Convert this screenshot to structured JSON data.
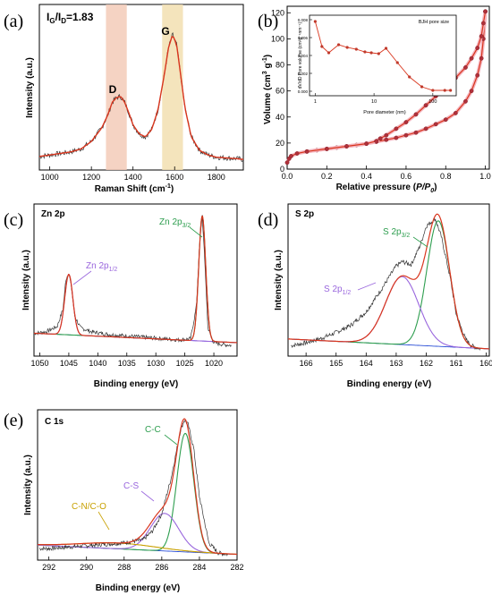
{
  "colors": {
    "raw": "#333333",
    "fit": "#d9361e",
    "bg": "#cc2a1a",
    "zn_main": "#2e9e4f",
    "zn_minor": "#9966dd",
    "d_band": "#f3cbb9",
    "g_band": "#f2dfb0",
    "c_cn": "#c8a000",
    "c_c": "#2e9e4f",
    "c_s": "#9966dd",
    "baseline": "#2b4fd6"
  },
  "panels": {
    "a": {
      "label": "(a)",
      "annotation": "I_G/I_D=1.83",
      "d_label": "D",
      "g_label": "G",
      "xlabel": "Raman Shift (cm⁻¹)",
      "ylabel": "Intensity (a.u.)",
      "xticks": [
        "1000",
        "1200",
        "1400",
        "1600",
        "1800"
      ]
    },
    "b": {
      "label": "(b)",
      "xlabel": "Relative pressure (P/P₀)",
      "ylabel": "Volume (cm³ g⁻¹)",
      "xticks": [
        "0.0",
        "0.2",
        "0.4",
        "0.6",
        "0.8",
        "1.0"
      ],
      "yticks": [
        "0",
        "20",
        "40",
        "60",
        "80",
        "100",
        "120"
      ],
      "inset": {
        "title": "BJH pore size",
        "xlabel": "Pore diameter (nm)",
        "ylabel": "dV/dD Pore volume (cm³g⁻¹nm⁻¹)",
        "xticks": [
          "1",
          "10",
          "100"
        ],
        "yticks": [
          "0.000",
          "0.002",
          "0.004",
          "0.006",
          "0.008"
        ]
      }
    },
    "c": {
      "label": "(c)",
      "title": "Zn 2p",
      "peak_main": "Zn 2p3/2",
      "peak_minor": "Zn 2p1/2",
      "xlabel": "Binding energy (eV)",
      "ylabel": "Intensity (a.u.)",
      "xticks": [
        "1050",
        "1045",
        "1040",
        "1035",
        "1030",
        "1025",
        "1020"
      ]
    },
    "d": {
      "label": "(d)",
      "title": "S 2p",
      "peak_main": "S 2p3/2",
      "peak_minor": "S 2p1/2",
      "xlabel": "Binding energy (eV)",
      "ylabel": "Intensity (a.u.)",
      "xticks": [
        "166",
        "165",
        "164",
        "163",
        "162",
        "161",
        "160"
      ]
    },
    "e": {
      "label": "(e)",
      "title": "C 1s",
      "peak_cc": "C-C",
      "peak_cs": "C-S",
      "peak_cn": "C-N/C-O",
      "xlabel": "Binding energy (eV)",
      "ylabel": "Intensity (a.u.)",
      "xticks": [
        "292",
        "290",
        "288",
        "286",
        "284",
        "282"
      ]
    }
  },
  "chart_data": [
    {
      "type": "line",
      "panel": "a",
      "x": [
        950,
        1000,
        1050,
        1100,
        1150,
        1200,
        1250,
        1280,
        1300,
        1320,
        1340,
        1360,
        1380,
        1400,
        1430,
        1460,
        1490,
        1520,
        1550,
        1570,
        1590,
        1610,
        1630,
        1650,
        1680,
        1720,
        1760,
        1800,
        1850,
        1900,
        1930
      ],
      "y": [
        0.04,
        0.05,
        0.06,
        0.07,
        0.09,
        0.14,
        0.23,
        0.32,
        0.4,
        0.43,
        0.44,
        0.4,
        0.33,
        0.25,
        0.19,
        0.17,
        0.22,
        0.35,
        0.58,
        0.76,
        0.85,
        0.78,
        0.57,
        0.36,
        0.17,
        0.08,
        0.05,
        0.035,
        0.03,
        0.025,
        0.02
      ],
      "xlim": [
        950,
        1930
      ],
      "ylim": [
        -0.05,
        1.05
      ],
      "bands": [
        [
          1270,
          1370
        ],
        [
          1540,
          1640
        ]
      ]
    },
    {
      "type": "line",
      "panel": "b",
      "series": [
        {
          "x": [
            0.0,
            0.01,
            0.02,
            0.05,
            0.1,
            0.15,
            0.2,
            0.25,
            0.3,
            0.35,
            0.4,
            0.45,
            0.5,
            0.55,
            0.6,
            0.65,
            0.7,
            0.75,
            0.8,
            0.85,
            0.9,
            0.93,
            0.96,
            0.98,
            0.99,
            1.0
          ],
          "y": [
            5,
            8,
            10,
            12,
            13.5,
            14.5,
            15.5,
            16.5,
            17.5,
            18.5,
            19.5,
            21,
            22.5,
            24,
            26,
            28,
            31,
            34.5,
            38,
            43,
            52,
            60,
            72,
            85,
            100,
            121
          ]
        },
        {
          "x": [
            1.0,
            0.99,
            0.98,
            0.96,
            0.93,
            0.9,
            0.85,
            0.8,
            0.75,
            0.7,
            0.65,
            0.6,
            0.55,
            0.5,
            0.47,
            0.45,
            0.4,
            0.3,
            0.2,
            0.1
          ],
          "y": [
            121,
            112,
            102,
            93,
            85,
            78,
            70,
            63,
            56,
            49,
            42,
            36,
            31,
            26,
            23.5,
            21.5,
            19.5,
            17.5,
            15.5,
            13.5
          ]
        }
      ],
      "xlim": [
        0,
        1.02
      ],
      "ylim": [
        0,
        125
      ]
    },
    {
      "type": "line",
      "panel": "b-inset",
      "x": [
        1,
        1.3,
        1.7,
        2.5,
        3.5,
        5,
        7,
        9,
        12,
        16,
        25,
        40,
        65,
        100,
        160,
        200
      ],
      "y": [
        0.0078,
        0.005,
        0.0043,
        0.0052,
        0.0049,
        0.0047,
        0.0044,
        0.0043,
        0.0042,
        0.0048,
        0.0032,
        0.0016,
        0.0005,
        0.0001,
        0.0001,
        0.0001
      ],
      "xlim": [
        0.8,
        250
      ],
      "ylim": [
        -0.0005,
        0.0085
      ],
      "xscale": "log"
    },
    {
      "type": "line",
      "panel": "c",
      "x": [
        1051,
        1049,
        1047,
        1046,
        1045.5,
        1045,
        1044.5,
        1044,
        1043,
        1041,
        1038,
        1035,
        1032,
        1029,
        1026,
        1024,
        1023,
        1022.5,
        1022,
        1021.5,
        1021,
        1020,
        1019,
        1017
      ],
      "y": [
        0.12,
        0.13,
        0.17,
        0.3,
        0.52,
        0.57,
        0.45,
        0.25,
        0.16,
        0.13,
        0.11,
        0.1,
        0.09,
        0.08,
        0.07,
        0.08,
        0.32,
        0.75,
        1.0,
        0.6,
        0.15,
        0.05,
        0.04,
        0.03
      ],
      "main": {
        "center": 1022.0,
        "height": 0.93
      },
      "minor": {
        "center": 1045.0,
        "height": 0.45
      },
      "xlim": [
        1051,
        1016
      ],
      "ylim": [
        -0.05,
        1.08
      ]
    },
    {
      "type": "line",
      "panel": "d",
      "x": [
        166.5,
        166,
        165.5,
        165,
        164.5,
        164,
        163.5,
        163,
        162.8,
        162.5,
        162.2,
        162,
        161.7,
        161.5,
        161.2,
        161,
        160.7,
        160.5,
        160.2
      ],
      "y": [
        0.04,
        0.06,
        0.09,
        0.13,
        0.18,
        0.27,
        0.42,
        0.58,
        0.61,
        0.59,
        0.72,
        0.85,
        0.9,
        0.78,
        0.5,
        0.25,
        0.09,
        0.04,
        0.02
      ],
      "main": {
        "center": 161.6,
        "height": 0.85
      },
      "minor": {
        "center": 162.8,
        "height": 0.46
      },
      "xlim": [
        166.6,
        159.9
      ],
      "ylim": [
        -0.03,
        1.0
      ]
    },
    {
      "type": "line",
      "panel": "e",
      "x": [
        292.5,
        292,
        291,
        290,
        289,
        288,
        287,
        286.5,
        286,
        285.5,
        285,
        284.8,
        284.6,
        284.3,
        284,
        283.5,
        283,
        282.5
      ],
      "y": [
        0.06,
        0.06,
        0.07,
        0.08,
        0.09,
        0.1,
        0.12,
        0.18,
        0.3,
        0.55,
        0.88,
        0.95,
        0.92,
        0.75,
        0.42,
        0.1,
        0.03,
        0.02
      ],
      "peaks": {
        "cc": {
          "center": 284.75,
          "height": 0.82
        },
        "cs": {
          "center": 285.85,
          "height": 0.26
        },
        "cn": {
          "center": 288.3,
          "height": 0.04
        }
      },
      "xlim": [
        292.6,
        282
      ],
      "ylim": [
        -0.02,
        1.02
      ]
    }
  ]
}
